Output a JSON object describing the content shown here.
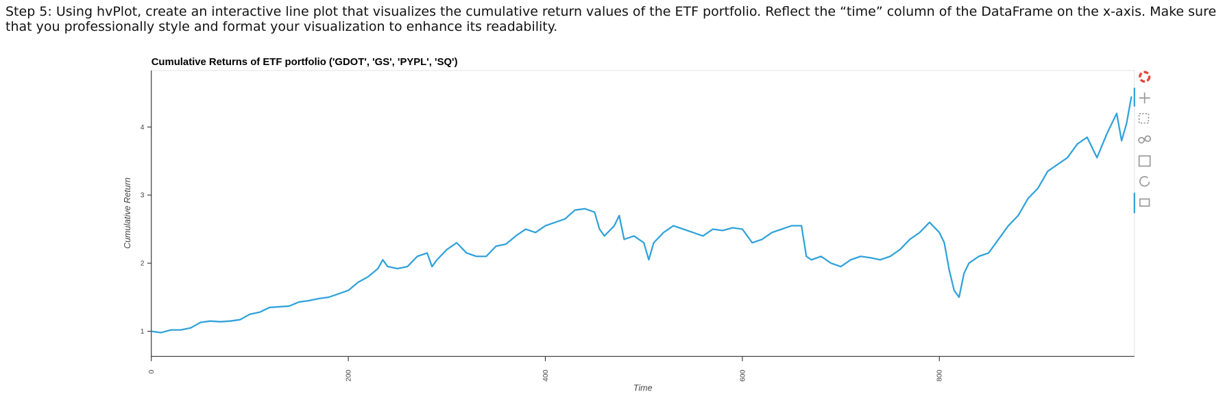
{
  "instruction": "Step 5: Using hvPlot, create an interactive line plot that visualizes the cumulative return values of the ETF portfolio. Reflect the “time” column of the DataFrame on the x-axis. Make sure that you professionally style and format your visualization to enhance its readability.",
  "chart_data": {
    "type": "line",
    "title": "Cumulative Returns of ETF portfolio ('GDOT', 'GS', 'PYPL', 'SQ')",
    "x_label": "Time",
    "y_label": "Cumulative Return",
    "color": "#30a2da",
    "x": [
      0,
      10,
      20,
      30,
      40,
      50,
      60,
      70,
      80,
      90,
      100,
      110,
      120,
      130,
      140,
      150,
      160,
      170,
      180,
      190,
      200,
      210,
      220,
      230,
      235,
      240,
      250,
      260,
      270,
      280,
      285,
      290,
      300,
      310,
      320,
      330,
      340,
      350,
      360,
      370,
      380,
      390,
      400,
      410,
      420,
      430,
      440,
      450,
      455,
      460,
      470,
      475,
      480,
      490,
      500,
      505,
      510,
      520,
      530,
      540,
      550,
      560,
      570,
      580,
      590,
      600,
      610,
      620,
      630,
      640,
      650,
      660,
      665,
      670,
      680,
      690,
      700,
      710,
      720,
      730,
      740,
      750,
      760,
      770,
      780,
      790,
      800,
      805,
      810,
      815,
      820,
      825,
      830,
      840,
      850,
      860,
      870,
      880,
      890,
      900,
      910,
      920,
      930,
      940,
      950,
      960,
      970,
      980,
      985,
      990,
      995
    ],
    "values": [
      1.0,
      0.98,
      1.02,
      1.02,
      1.05,
      1.13,
      1.15,
      1.14,
      1.15,
      1.17,
      1.25,
      1.28,
      1.35,
      1.36,
      1.37,
      1.43,
      1.45,
      1.48,
      1.5,
      1.55,
      1.6,
      1.72,
      1.8,
      1.92,
      2.05,
      1.95,
      1.92,
      1.95,
      2.1,
      2.15,
      1.95,
      2.05,
      2.2,
      2.3,
      2.15,
      2.1,
      2.1,
      2.25,
      2.28,
      2.4,
      2.5,
      2.45,
      2.55,
      2.6,
      2.65,
      2.78,
      2.8,
      2.75,
      2.5,
      2.4,
      2.55,
      2.7,
      2.35,
      2.4,
      2.3,
      2.05,
      2.3,
      2.45,
      2.55,
      2.5,
      2.45,
      2.4,
      2.5,
      2.48,
      2.52,
      2.5,
      2.3,
      2.35,
      2.45,
      2.5,
      2.55,
      2.55,
      2.1,
      2.05,
      2.1,
      2.0,
      1.95,
      2.05,
      2.1,
      2.08,
      2.05,
      2.1,
      2.2,
      2.35,
      2.45,
      2.6,
      2.45,
      2.3,
      1.9,
      1.6,
      1.5,
      1.85,
      2.0,
      2.1,
      2.15,
      2.35,
      2.55,
      2.7,
      2.95,
      3.1,
      3.35,
      3.45,
      3.55,
      3.75,
      3.85,
      3.55,
      3.9,
      4.2,
      3.8,
      4.05,
      4.45
    ],
    "xlim": [
      0,
      998
    ],
    "ylim": [
      0.63,
      4.83
    ],
    "xticks": [
      0,
      200,
      400,
      600,
      800
    ],
    "yticks": [
      1,
      2,
      3,
      4
    ],
    "grid": false
  }
}
